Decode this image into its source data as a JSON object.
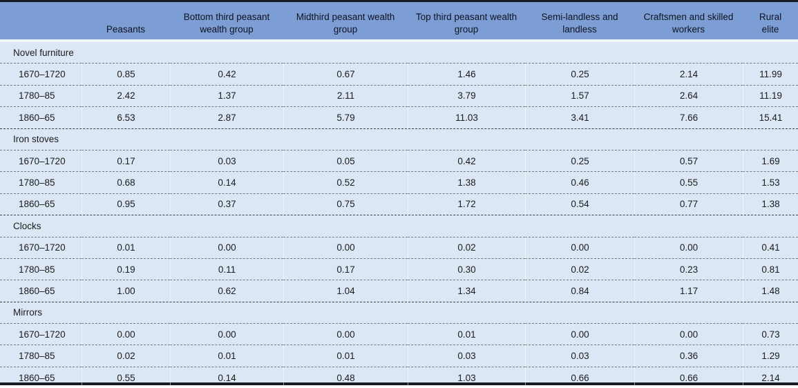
{
  "chart_data": {
    "type": "table",
    "columns": [
      "",
      "Peasants",
      "Bottom third peasant wealth group",
      "Midthird peasant wealth group",
      "Top third peasant wealth group",
      "Semi-landless and landless",
      "Craftsmen and skilled workers",
      "Rural elite"
    ],
    "sections": [
      {
        "label": "Novel furniture",
        "rows": [
          {
            "period": "1670–1720",
            "values": [
              "0.85",
              "0.42",
              "0.67",
              "1.46",
              "0.25",
              "2.14",
              "11.99"
            ]
          },
          {
            "period": "1780–85",
            "values": [
              "2.42",
              "1.37",
              "2.11",
              "3.79",
              "1.57",
              "2.64",
              "11.19"
            ]
          },
          {
            "period": "1860–65",
            "values": [
              "6.53",
              "2.87",
              "5.79",
              "11.03",
              "3.41",
              "7.66",
              "15.41"
            ]
          }
        ]
      },
      {
        "label": "Iron stoves",
        "rows": [
          {
            "period": "1670–1720",
            "values": [
              "0.17",
              "0.03",
              "0.05",
              "0.42",
              "0.25",
              "0.57",
              "1.69"
            ]
          },
          {
            "period": "1780–85",
            "values": [
              "0.68",
              "0.14",
              "0.52",
              "1.38",
              "0.46",
              "0.55",
              "1.53"
            ]
          },
          {
            "period": "1860–65",
            "values": [
              "0.95",
              "0.37",
              "0.75",
              "1.72",
              "0.54",
              "0.77",
              "1.38"
            ]
          }
        ]
      },
      {
        "label": "Clocks",
        "rows": [
          {
            "period": "1670–1720",
            "values": [
              "0.01",
              "0.00",
              "0.00",
              "0.02",
              "0.00",
              "0.00",
              "0.41"
            ]
          },
          {
            "period": "1780–85",
            "values": [
              "0.19",
              "0.11",
              "0.17",
              "0.30",
              "0.02",
              "0.23",
              "0.81"
            ]
          },
          {
            "period": "1860–65",
            "values": [
              "1.00",
              "0.62",
              "1.04",
              "1.34",
              "0.84",
              "1.17",
              "1.48"
            ]
          }
        ]
      },
      {
        "label": "Mirrors",
        "rows": [
          {
            "period": "1670–1720",
            "values": [
              "0.00",
              "0.00",
              "0.00",
              "0.01",
              "0.00",
              "0.00",
              "0.73"
            ]
          },
          {
            "period": "1780–85",
            "values": [
              "0.02",
              "0.01",
              "0.01",
              "0.03",
              "0.03",
              "0.36",
              "1.29"
            ]
          },
          {
            "period": "1860–65",
            "values": [
              "0.55",
              "0.14",
              "0.48",
              "1.03",
              "0.66",
              "0.66",
              "2.14"
            ]
          }
        ]
      }
    ],
    "layout": {
      "grid": "dashed horizontal separators, faint white vertical separators",
      "legend_position": "none"
    },
    "colors": {
      "header_background": "#7d9dd5",
      "body_background": "#dce7f5",
      "frame_border": "#171923",
      "header_gap_line": "#eff5fc",
      "row_separator": "#7a7a7a",
      "section_separator": "#3e3e3e",
      "text": "#1b1b1b"
    }
  }
}
